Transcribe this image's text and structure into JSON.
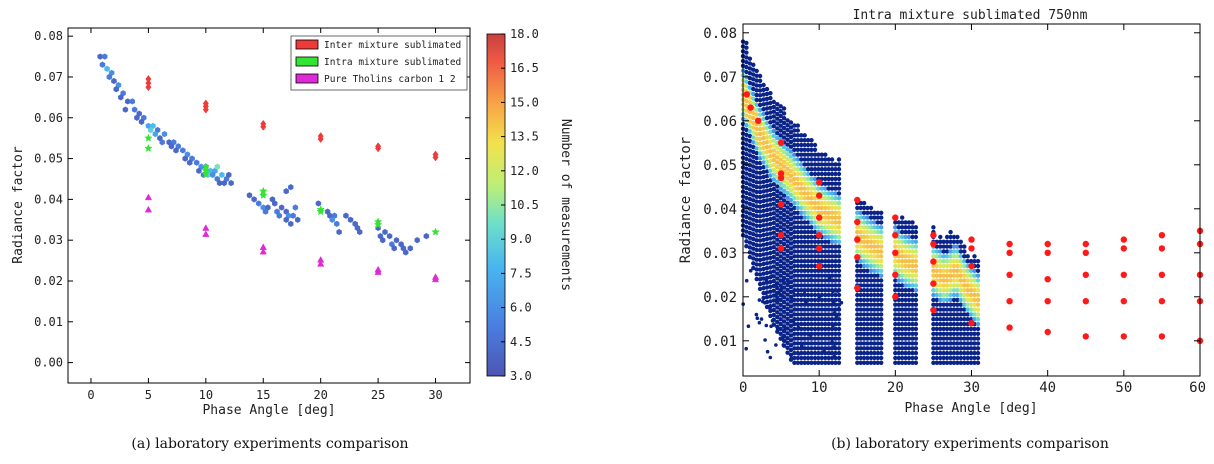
{
  "chart_data": [
    {
      "type": "scatter",
      "xlabel": "Phase Angle [deg]",
      "ylabel": "Radiance factor",
      "xlim": [
        -2,
        33
      ],
      "ylim": [
        -0.005,
        0.082
      ],
      "xticks": [
        "0",
        "5",
        "10",
        "15",
        "20",
        "25",
        "30"
      ],
      "yticks": [
        "0.00",
        "0.01",
        "0.02",
        "0.03",
        "0.04",
        "0.05",
        "0.06",
        "0.07",
        "0.08"
      ],
      "legend_position": "top-right",
      "colorbar": {
        "label": "Number of measurements",
        "range": [
          3.0,
          18.0
        ],
        "ticks": [
          "3.0",
          "4.5",
          "6.0",
          "7.5",
          "9.0",
          "10.5",
          "12.0",
          "13.5",
          "15.0",
          "16.5",
          "18.0"
        ]
      },
      "caption": "(a) laboratory experiments comparison",
      "hexbin": [
        [
          0.8,
          0.075,
          4
        ],
        [
          1.2,
          0.075,
          5
        ],
        [
          1.0,
          0.073,
          5
        ],
        [
          1.4,
          0.072,
          8
        ],
        [
          1.8,
          0.071,
          6
        ],
        [
          1.6,
          0.07,
          5
        ],
        [
          2.0,
          0.069,
          4
        ],
        [
          2.4,
          0.068,
          6
        ],
        [
          2.2,
          0.067,
          4
        ],
        [
          2.8,
          0.066,
          5
        ],
        [
          2.6,
          0.065,
          4
        ],
        [
          3.2,
          0.064,
          4
        ],
        [
          3.6,
          0.064,
          5
        ],
        [
          3.0,
          0.062,
          4
        ],
        [
          3.8,
          0.062,
          5
        ],
        [
          4.2,
          0.061,
          4
        ],
        [
          4.0,
          0.06,
          4
        ],
        [
          4.6,
          0.06,
          5
        ],
        [
          4.4,
          0.059,
          4
        ],
        [
          5.0,
          0.058,
          7
        ],
        [
          5.4,
          0.058,
          8
        ],
        [
          5.2,
          0.057,
          9
        ],
        [
          5.8,
          0.057,
          5
        ],
        [
          5.6,
          0.056,
          7
        ],
        [
          6.0,
          0.055,
          4
        ],
        [
          6.4,
          0.056,
          6
        ],
        [
          6.2,
          0.054,
          5
        ],
        [
          6.8,
          0.054,
          4
        ],
        [
          7.2,
          0.054,
          5
        ],
        [
          7.0,
          0.053,
          4
        ],
        [
          7.6,
          0.053,
          5
        ],
        [
          7.4,
          0.052,
          4
        ],
        [
          8.0,
          0.052,
          5
        ],
        [
          8.4,
          0.051,
          6
        ],
        [
          8.2,
          0.05,
          4
        ],
        [
          8.8,
          0.05,
          5
        ],
        [
          8.6,
          0.049,
          4
        ],
        [
          9.2,
          0.049,
          5
        ],
        [
          9.6,
          0.048,
          6
        ],
        [
          9.4,
          0.047,
          4
        ],
        [
          10.0,
          0.048,
          5
        ],
        [
          10.4,
          0.047,
          8
        ],
        [
          10.2,
          0.046,
          9
        ],
        [
          10.8,
          0.047,
          7
        ],
        [
          10.6,
          0.046,
          6
        ],
        [
          11.0,
          0.045,
          5
        ],
        [
          11.4,
          0.046,
          8
        ],
        [
          11.2,
          0.044,
          4
        ],
        [
          11.8,
          0.045,
          5
        ],
        [
          11.6,
          0.044,
          4
        ],
        [
          12.0,
          0.046,
          4
        ],
        [
          12.2,
          0.044,
          4
        ],
        [
          9.8,
          0.046,
          5
        ],
        [
          11.0,
          0.048,
          10
        ],
        [
          13.8,
          0.041,
          4
        ],
        [
          14.2,
          0.04,
          4
        ],
        [
          14.6,
          0.039,
          5
        ],
        [
          15.0,
          0.038,
          6
        ],
        [
          15.4,
          0.038,
          4
        ],
        [
          15.2,
          0.037,
          5
        ],
        [
          15.8,
          0.04,
          4
        ],
        [
          16.0,
          0.039,
          4
        ],
        [
          16.2,
          0.037,
          5
        ],
        [
          16.6,
          0.038,
          4
        ],
        [
          16.4,
          0.036,
          5
        ],
        [
          17.0,
          0.037,
          4
        ],
        [
          17.2,
          0.036,
          6
        ],
        [
          17.0,
          0.035,
          4
        ],
        [
          17.6,
          0.036,
          5
        ],
        [
          17.4,
          0.034,
          4
        ],
        [
          18.0,
          0.035,
          4
        ],
        [
          17.8,
          0.038,
          5
        ],
        [
          17.0,
          0.042,
          4
        ],
        [
          17.4,
          0.043,
          4
        ],
        [
          19.8,
          0.039,
          4
        ],
        [
          20.6,
          0.037,
          4
        ],
        [
          20.8,
          0.036,
          4
        ],
        [
          21.2,
          0.036,
          5
        ],
        [
          21.0,
          0.035,
          6
        ],
        [
          21.4,
          0.034,
          5
        ],
        [
          21.6,
          0.032,
          4
        ],
        [
          22.2,
          0.036,
          4
        ],
        [
          22.6,
          0.035,
          4
        ],
        [
          23.0,
          0.034,
          4
        ],
        [
          23.2,
          0.033,
          4
        ],
        [
          23.4,
          0.032,
          4
        ],
        [
          25.0,
          0.033,
          4
        ],
        [
          25.2,
          0.031,
          4
        ],
        [
          25.6,
          0.032,
          4
        ],
        [
          25.4,
          0.03,
          4
        ],
        [
          26.0,
          0.031,
          4
        ],
        [
          26.2,
          0.029,
          5
        ],
        [
          26.6,
          0.03,
          4
        ],
        [
          26.4,
          0.028,
          4
        ],
        [
          27.0,
          0.029,
          4
        ],
        [
          27.2,
          0.028,
          4
        ],
        [
          27.4,
          0.027,
          4
        ],
        [
          27.8,
          0.028,
          4
        ],
        [
          28.4,
          0.03,
          4
        ],
        [
          29.2,
          0.031,
          4
        ]
      ],
      "series": [
        {
          "name": "Inter mixture sublimated",
          "color": "#ef3a3a",
          "x": [
            5,
            5,
            5,
            10,
            10,
            10,
            15,
            15,
            20,
            20,
            25,
            25,
            30,
            30
          ],
          "y": [
            0.0695,
            0.0685,
            0.0675,
            0.0635,
            0.0628,
            0.062,
            0.0585,
            0.0578,
            0.0555,
            0.0548,
            0.053,
            0.0525,
            0.051,
            0.0503
          ]
        },
        {
          "name": "Intra mixture sublimated",
          "color": "#33e533",
          "x": [
            5,
            5,
            10,
            10,
            10,
            15,
            15,
            20,
            20,
            25,
            25,
            30
          ],
          "y": [
            0.055,
            0.0525,
            0.048,
            0.047,
            0.0462,
            0.042,
            0.041,
            0.0375,
            0.037,
            0.0345,
            0.0338,
            0.032
          ]
        },
        {
          "name": "Pure Tholins carbon 1 2",
          "color": "#e029d6",
          "x": [
            5,
            5,
            10,
            10,
            15,
            15,
            20,
            20,
            25,
            25,
            30,
            30
          ],
          "y": [
            0.0405,
            0.0375,
            0.033,
            0.0315,
            0.0283,
            0.0272,
            0.0252,
            0.0242,
            0.0228,
            0.0222,
            0.021,
            0.0204
          ]
        }
      ]
    },
    {
      "type": "scatter",
      "title": "Intra mixture sublimated 750nm",
      "xlabel": "Phase Angle [deg]",
      "ylabel": "Radiance factor",
      "xlim": [
        0,
        60
      ],
      "ylim": [
        0.002,
        0.082
      ],
      "xticks": [
        "0",
        "10",
        "20",
        "30",
        "40",
        "50",
        "60"
      ],
      "yticks": [
        "0.01",
        "0.02",
        "0.03",
        "0.04",
        "0.05",
        "0.06",
        "0.07",
        "0.08"
      ],
      "caption": "(b) laboratory experiments comparison",
      "density_bands": [
        {
          "x_range": [
            0,
            13
          ],
          "ridge": [
            [
              0,
              0.066
            ],
            [
              2,
              0.058
            ],
            [
              4,
              0.052
            ],
            [
              6,
              0.048
            ],
            [
              8,
              0.044
            ],
            [
              10,
              0.04
            ],
            [
              13,
              0.037
            ]
          ]
        },
        {
          "x_range": [
            15,
            18.5
          ],
          "ridge": [
            [
              15,
              0.034
            ],
            [
              16.5,
              0.032
            ],
            [
              18.5,
              0.03
            ]
          ]
        },
        {
          "x_range": [
            20,
            23
          ],
          "ridge": [
            [
              20,
              0.03
            ],
            [
              21.5,
              0.028
            ],
            [
              23,
              0.027
            ]
          ]
        },
        {
          "x_range": [
            25,
            31
          ],
          "ridge": [
            [
              25,
              0.026
            ],
            [
              26.5,
              0.024
            ],
            [
              28,
              0.026
            ],
            [
              29.5,
              0.022
            ],
            [
              31,
              0.019
            ]
          ]
        }
      ],
      "series": [
        {
          "name": "points",
          "color": "#ff1a1a",
          "x": [
            0.5,
            1,
            2,
            5,
            5,
            5,
            5,
            5,
            5,
            10,
            10,
            10,
            10,
            10,
            10,
            15,
            15,
            15,
            15,
            15,
            20,
            20,
            20,
            20,
            20,
            25,
            25,
            25,
            25,
            25,
            30,
            30,
            30,
            30,
            35,
            35,
            35,
            35,
            35,
            40,
            40,
            40,
            40,
            40,
            45,
            45,
            45,
            45,
            45,
            50,
            50,
            50,
            50,
            50,
            55,
            55,
            55,
            55,
            55,
            60,
            60,
            60,
            60,
            60
          ],
          "y": [
            0.066,
            0.063,
            0.06,
            0.055,
            0.048,
            0.041,
            0.034,
            0.031,
            0.047,
            0.046,
            0.043,
            0.038,
            0.034,
            0.031,
            0.027,
            0.042,
            0.037,
            0.033,
            0.029,
            0.022,
            0.038,
            0.034,
            0.03,
            0.025,
            0.02,
            0.034,
            0.032,
            0.028,
            0.023,
            0.017,
            0.033,
            0.031,
            0.027,
            0.014,
            0.032,
            0.03,
            0.025,
            0.019,
            0.013,
            0.032,
            0.03,
            0.024,
            0.019,
            0.012,
            0.032,
            0.03,
            0.025,
            0.019,
            0.011,
            0.033,
            0.031,
            0.025,
            0.019,
            0.011,
            0.034,
            0.031,
            0.025,
            0.019,
            0.011,
            0.035,
            0.032,
            0.025,
            0.019,
            0.01
          ]
        }
      ]
    }
  ]
}
